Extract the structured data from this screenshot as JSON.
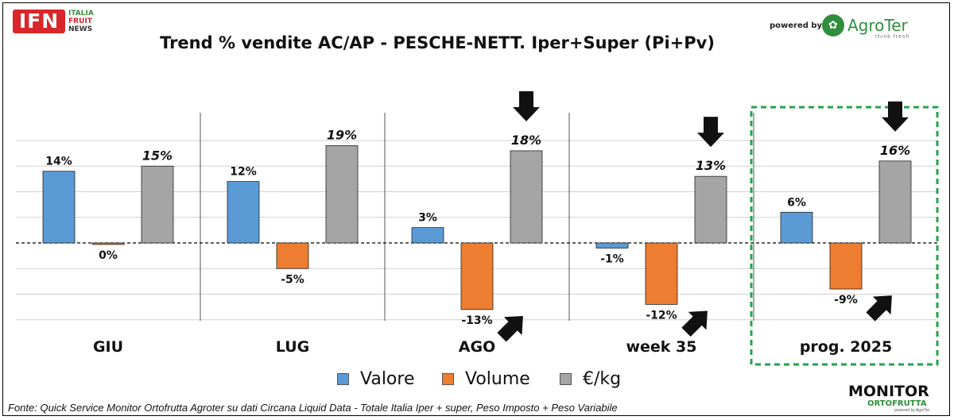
{
  "header": {
    "logo_ifn": {
      "mark": "IFN",
      "line1": "ITALIA",
      "line2": "FRUIT",
      "line3": "NEWS"
    },
    "title": "Trend % vendite AC/AP - PESCHE-NETT.  Iper+Super (Pi+Pv)",
    "powered_by": "powered by",
    "agroter": {
      "name": "AgroTer",
      "tagline": "think fresh"
    }
  },
  "footer": {
    "source": "Fonte: Quick Service Monitor Ortofrutta Agroter su dati Circana Liquid Data - Totale Italia Iper + super, Peso Imposto + Peso Variabile",
    "monitor": {
      "line1": "MONITOR",
      "line2": "ORTOFRUTTA",
      "line3": "powered by AgroTer"
    }
  },
  "chart_data": {
    "type": "bar",
    "title": "Trend % vendite AC/AP - PESCHE-NETT.  Iper+Super (Pi+Pv)",
    "categories": [
      "GIU",
      "LUG",
      "AGO",
      "week 35",
      "prog. 2025"
    ],
    "series": [
      {
        "name": "Valore",
        "color": "#5b9bd5",
        "values": [
          14,
          12,
          3,
          -1,
          6
        ],
        "labels": [
          "14%",
          "12%",
          "3%",
          "-1%",
          "6%"
        ]
      },
      {
        "name": "Volume",
        "color": "#ed7d31",
        "values": [
          -0.3,
          -5,
          -13,
          -12,
          -9
        ],
        "labels": [
          "0%",
          "-5%",
          "-13%",
          "-12%",
          "-9%"
        ]
      },
      {
        "name": "€/kg",
        "color": "#a5a5a5",
        "values": [
          15,
          19,
          18,
          13,
          16
        ],
        "labels": [
          "15%",
          "19%",
          "18%",
          "13%",
          "16%"
        ]
      }
    ],
    "ylim": [
      -15,
      25
    ],
    "grid": true,
    "legend": "bottom",
    "highlight_category": "prog. 2025",
    "annotations": {
      "down_arrows_over_price": [
        "AGO",
        "week 35",
        "prog. 2025"
      ],
      "up_left_arrows_under_volume": [
        "AGO",
        "week 35",
        "prog. 2025"
      ]
    }
  }
}
